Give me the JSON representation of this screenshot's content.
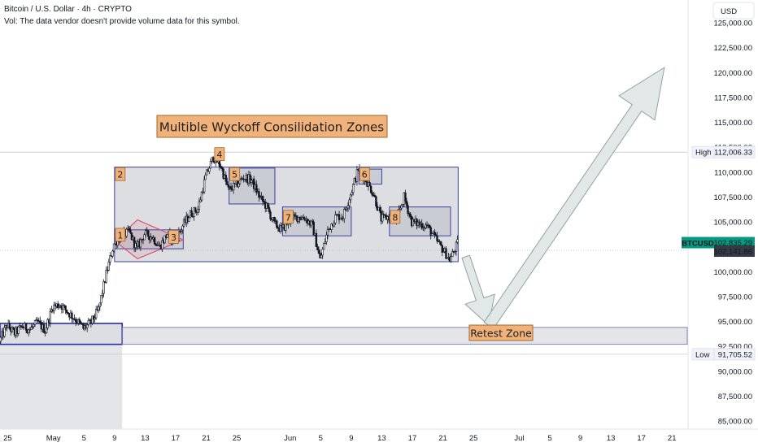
{
  "header": {
    "title": "Bitcoin / U.S. Dollar · 4h · CRYPTO",
    "volume_note": "Vol: The data vendor doesn't provide volume data for this symbol."
  },
  "currency_button": "USD",
  "colors": {
    "candle": "#131722",
    "zone_fill": "#b2b5be",
    "zone_border": "#3f3fa0",
    "label_fill": "#f0b27a",
    "label_border": "#9c6a2d",
    "accent_teal": "#089981",
    "arrow_fill": "#dfe4e4",
    "arrow_stroke": "#8fa3a3",
    "triangle": "#d9536f"
  },
  "chart_data": {
    "type": "candlestick",
    "symbol": "BTCUSD",
    "interval": "4h",
    "y_axis": {
      "min": 85000,
      "max": 125000,
      "ticks": [
        85000,
        87500,
        90000,
        92500,
        95000,
        97500,
        100000,
        102500,
        105000,
        107500,
        110000,
        112500,
        115000,
        117500,
        120000,
        122500,
        125000
      ],
      "tick_labels": [
        "85,000.00",
        "87,500.00",
        "90,000.00",
        "92,500.00",
        "95,000.00",
        "97,500.00",
        "100,000.00",
        "102,500.00",
        "105,000.00",
        "107,500.00",
        "110,000.00",
        "112,500.00",
        "115,000.00",
        "117,500.00",
        "120,000.00",
        "122,500.00",
        "125,000.00"
      ]
    },
    "x_axis": {
      "min_date": "2025-04-24",
      "max_date": "2025-07-23",
      "ticks": [
        {
          "date": "2025-04-25",
          "label": "25"
        },
        {
          "date": "2025-05-01",
          "label": "May"
        },
        {
          "date": "2025-05-05",
          "label": "5"
        },
        {
          "date": "2025-05-09",
          "label": "9"
        },
        {
          "date": "2025-05-13",
          "label": "13"
        },
        {
          "date": "2025-05-17",
          "label": "17"
        },
        {
          "date": "2025-05-21",
          "label": "21"
        },
        {
          "date": "2025-05-25",
          "label": "25"
        },
        {
          "date": "2025-06-01",
          "label": "Jun"
        },
        {
          "date": "2025-06-05",
          "label": "5"
        },
        {
          "date": "2025-06-09",
          "label": "9"
        },
        {
          "date": "2025-06-13",
          "label": "13"
        },
        {
          "date": "2025-06-17",
          "label": "17"
        },
        {
          "date": "2025-06-21",
          "label": "21"
        },
        {
          "date": "2025-06-25",
          "label": "25"
        },
        {
          "date": "2025-07-01",
          "label": "Jul"
        },
        {
          "date": "2025-07-05",
          "label": "5"
        },
        {
          "date": "2025-07-09",
          "label": "9"
        },
        {
          "date": "2025-07-13",
          "label": "13"
        },
        {
          "date": "2025-07-17",
          "label": "17"
        },
        {
          "date": "2025-07-21",
          "label": "21"
        }
      ]
    },
    "price_path": [
      [
        "2025-04-24",
        93000
      ],
      [
        "2025-04-25",
        94600
      ],
      [
        "2025-04-26",
        93800
      ],
      [
        "2025-04-27",
        94500
      ],
      [
        "2025-04-28",
        94200
      ],
      [
        "2025-04-29",
        94900
      ],
      [
        "2025-04-30",
        94100
      ],
      [
        "2025-05-01",
        96500
      ],
      [
        "2025-05-02",
        96700
      ],
      [
        "2025-05-03",
        95900
      ],
      [
        "2025-05-04",
        95200
      ],
      [
        "2025-05-05",
        94300
      ],
      [
        "2025-05-06",
        94900
      ],
      [
        "2025-05-07",
        96200
      ],
      [
        "2025-05-08",
        99800
      ],
      [
        "2025-05-09",
        102800
      ],
      [
        "2025-05-10",
        103600
      ],
      [
        "2025-05-11",
        104000
      ],
      [
        "2025-05-12",
        102300
      ],
      [
        "2025-05-13",
        103800
      ],
      [
        "2025-05-14",
        103500
      ],
      [
        "2025-05-15",
        102500
      ],
      [
        "2025-05-16",
        103800
      ],
      [
        "2025-05-17",
        103100
      ],
      [
        "2025-05-18",
        104600
      ],
      [
        "2025-05-19",
        105800
      ],
      [
        "2025-05-20",
        106300
      ],
      [
        "2025-05-21",
        109500
      ],
      [
        "2025-05-22",
        111500
      ],
      [
        "2025-05-23",
        110600
      ],
      [
        "2025-05-24",
        108200
      ],
      [
        "2025-05-25",
        108700
      ],
      [
        "2025-05-26",
        109500
      ],
      [
        "2025-05-27",
        109200
      ],
      [
        "2025-05-28",
        107600
      ],
      [
        "2025-05-29",
        106500
      ],
      [
        "2025-05-30",
        104800
      ],
      [
        "2025-05-31",
        104200
      ],
      [
        "2025-06-01",
        105200
      ],
      [
        "2025-06-02",
        105500
      ],
      [
        "2025-06-03",
        105400
      ],
      [
        "2025-06-04",
        104600
      ],
      [
        "2025-06-05",
        101200
      ],
      [
        "2025-06-06",
        104100
      ],
      [
        "2025-06-07",
        105500
      ],
      [
        "2025-06-08",
        105600
      ],
      [
        "2025-06-09",
        107800
      ],
      [
        "2025-06-10",
        110300
      ],
      [
        "2025-06-11",
        109200
      ],
      [
        "2025-06-12",
        107800
      ],
      [
        "2025-06-13",
        105300
      ],
      [
        "2025-06-14",
        105500
      ],
      [
        "2025-06-15",
        105200
      ],
      [
        "2025-06-16",
        107500
      ],
      [
        "2025-06-17",
        105000
      ],
      [
        "2025-06-18",
        104800
      ],
      [
        "2025-06-19",
        104600
      ],
      [
        "2025-06-20",
        103400
      ],
      [
        "2025-06-21",
        102300
      ],
      [
        "2025-06-22",
        101200
      ],
      [
        "2025-06-23",
        102835.29
      ]
    ],
    "zones": [
      {
        "name": "big-range",
        "from": "2025-05-09",
        "to": "2025-06-23",
        "low": 101000,
        "high": 110500
      },
      {
        "name": "inner-range-1",
        "from": "2025-05-09",
        "to": "2025-05-18",
        "low": 102300,
        "high": 104200
      },
      {
        "name": "zone-5",
        "from": "2025-05-24",
        "to": "2025-05-30",
        "low": 106800,
        "high": 110400
      },
      {
        "name": "zone-6",
        "from": "2025-06-10",
        "to": "2025-06-13",
        "low": 108800,
        "high": 110300
      },
      {
        "name": "zone-7",
        "from": "2025-05-31",
        "to": "2025-06-09",
        "low": 103600,
        "high": 106500
      },
      {
        "name": "zone-8",
        "from": "2025-06-14",
        "to": "2025-06-22",
        "low": 103600,
        "high": 106500
      },
      {
        "name": "left-base",
        "from": "2025-04-24",
        "to": "2025-05-10",
        "low": 92700,
        "high": 94800
      }
    ],
    "zone_numbers": [
      {
        "text": "1",
        "date": "2025-05-09",
        "price": 103700
      },
      {
        "text": "2",
        "date": "2025-05-09",
        "price": 109800
      },
      {
        "text": "3",
        "date": "2025-05-16",
        "price": 103500
      },
      {
        "text": "4",
        "date": "2025-05-22",
        "price": 111800
      },
      {
        "text": "5",
        "date": "2025-05-24",
        "price": 109800
      },
      {
        "text": "6",
        "date": "2025-06-10",
        "price": 109800
      },
      {
        "text": "7",
        "date": "2025-05-31",
        "price": 105500
      },
      {
        "text": "8",
        "date": "2025-06-14",
        "price": 105500
      }
    ],
    "annotations": {
      "title_box": "Multible Wyckoff Consilidation Zones",
      "retest_label": "Retest Zone",
      "retest_zone": {
        "low": 92700,
        "high": 94400
      },
      "projection": [
        [
          "2025-06-24",
          101500
        ],
        [
          "2025-06-27",
          94600
        ],
        [
          "2025-07-20",
          120500
        ]
      ]
    },
    "price_labels": {
      "high": {
        "label": "High",
        "value": 112006.33,
        "text": "112,006.33"
      },
      "low": {
        "label": "Low",
        "value": 91705.52,
        "text": "91,705.52"
      },
      "current": {
        "symbol": "BTCUSD",
        "value": 102835.29,
        "text": "102,835.29",
        "countdown": "02:56:56"
      },
      "level": {
        "value": 102141.86,
        "text": "102,141.86"
      }
    },
    "grid": false,
    "legend": "none"
  }
}
